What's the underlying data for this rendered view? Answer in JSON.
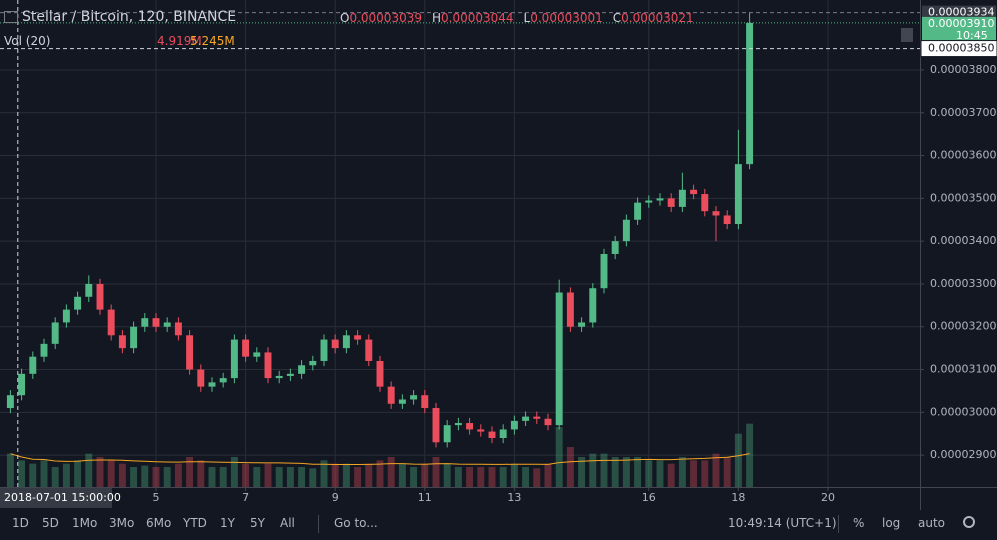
{
  "chart_data": {
    "type": "candlestick",
    "title": "Stellar / Bitcoin, 120, BINANCE",
    "ohlc": [
      {
        "name": "O",
        "value": 3.039e-05
      },
      {
        "name": "H",
        "value": 3.044e-05
      },
      {
        "name": "L",
        "value": 3.001e-05
      },
      {
        "name": "C",
        "value": 3.021e-05
      }
    ],
    "up_color": "#53b987",
    "down_color": "#eb4d5c",
    "x": [
      1.75,
      2,
      2.25,
      2.5,
      2.75,
      3,
      3.25,
      3.5,
      3.75,
      4,
      4.25,
      4.5,
      4.75,
      5,
      5.25,
      5.5,
      5.75,
      6,
      6.25,
      6.5,
      6.75,
      7,
      7.25,
      7.5,
      7.75,
      8,
      8.25,
      8.5,
      8.75,
      9,
      9.25,
      9.5,
      9.75,
      10,
      10.25,
      10.5,
      10.75,
      11,
      11.25,
      11.5,
      11.75,
      12,
      12.25,
      12.5,
      12.75,
      13,
      13.25,
      13.5,
      13.75,
      14,
      14.25,
      14.5,
      14.75,
      15,
      15.25,
      15.5,
      15.75,
      16,
      16.25,
      16.5,
      16.75,
      17,
      17.25,
      17.5,
      17.75,
      18,
      18.25
    ],
    "open": [
      3.01e-05,
      3.04e-05,
      3.09e-05,
      3.13e-05,
      3.16e-05,
      3.21e-05,
      3.24e-05,
      3.27e-05,
      3.3e-05,
      3.24e-05,
      3.18e-05,
      3.15e-05,
      3.2e-05,
      3.22e-05,
      3.2e-05,
      3.21e-05,
      3.18e-05,
      3.1e-05,
      3.06e-05,
      3.07e-05,
      3.08e-05,
      3.17e-05,
      3.13e-05,
      3.14e-05,
      3.08e-05,
      3.085e-05,
      3.09e-05,
      3.11e-05,
      3.12e-05,
      3.17e-05,
      3.15e-05,
      3.18e-05,
      3.17e-05,
      3.12e-05,
      3.06e-05,
      3.02e-05,
      3.03e-05,
      3.04e-05,
      3.01e-05,
      2.93e-05,
      2.97e-05,
      2.975e-05,
      2.96e-05,
      2.955e-05,
      2.94e-05,
      2.96e-05,
      2.98e-05,
      2.99e-05,
      2.985e-05,
      2.97e-05,
      3.28e-05,
      3.2e-05,
      3.21e-05,
      3.29e-05,
      3.37e-05,
      3.4e-05,
      3.45e-05,
      3.49e-05,
      3.495e-05,
      3.5e-05,
      3.48e-05,
      3.52e-05,
      3.51e-05,
      3.47e-05,
      3.46e-05,
      3.44e-05,
      3.58e-05
    ],
    "high": [
      3.052e-05,
      3.102e-05,
      3.142e-05,
      3.172e-05,
      3.222e-05,
      3.252e-05,
      3.282e-05,
      3.32e-05,
      3.312e-05,
      3.252e-05,
      3.192e-05,
      3.212e-05,
      3.232e-05,
      3.232e-05,
      3.222e-05,
      3.222e-05,
      3.192e-05,
      3.112e-05,
      3.082e-05,
      3.092e-05,
      3.182e-05,
      3.182e-05,
      3.152e-05,
      3.152e-05,
      3.097e-05,
      3.102e-05,
      3.122e-05,
      3.132e-05,
      3.182e-05,
      3.182e-05,
      3.192e-05,
      3.192e-05,
      3.182e-05,
      3.132e-05,
      3.072e-05,
      3.042e-05,
      3.052e-05,
      3.052e-05,
      3.022e-05,
      2.982e-05,
      2.987e-05,
      2.987e-05,
      2.972e-05,
      2.967e-05,
      2.972e-05,
      2.992e-05,
      3.002e-05,
      3.002e-05,
      2.997e-05,
      3.31e-05,
      3.292e-05,
      3.222e-05,
      3.302e-05,
      3.382e-05,
      3.412e-05,
      3.462e-05,
      3.502e-05,
      3.507e-05,
      3.512e-05,
      3.512e-05,
      3.56e-05,
      3.532e-05,
      3.522e-05,
      3.482e-05,
      3.472e-05,
      3.66e-05,
      3.934e-05
    ],
    "low": [
      2.998e-05,
      3.028e-05,
      3.078e-05,
      3.118e-05,
      3.148e-05,
      3.198e-05,
      3.228e-05,
      3.258e-05,
      3.228e-05,
      3.168e-05,
      3.138e-05,
      3.138e-05,
      3.188e-05,
      3.188e-05,
      3.188e-05,
      3.168e-05,
      3.088e-05,
      3.048e-05,
      3.048e-05,
      3.058e-05,
      3.068e-05,
      3.118e-05,
      3.118e-05,
      3.068e-05,
      3.068e-05,
      3.073e-05,
      3.078e-05,
      3.098e-05,
      3.108e-05,
      3.138e-05,
      3.138e-05,
      3.158e-05,
      3.108e-05,
      3.048e-05,
      3.008e-05,
      3.008e-05,
      3.018e-05,
      2.998e-05,
      2.918e-05,
      2.918e-05,
      2.958e-05,
      2.948e-05,
      2.943e-05,
      2.928e-05,
      2.928e-05,
      2.948e-05,
      2.968e-05,
      2.973e-05,
      2.958e-05,
      2.96e-05,
      3.188e-05,
      3.188e-05,
      3.198e-05,
      3.278e-05,
      3.358e-05,
      3.388e-05,
      3.438e-05,
      3.478e-05,
      3.483e-05,
      3.468e-05,
      3.468e-05,
      3.498e-05,
      3.458e-05,
      3.4e-05,
      3.428e-05,
      3.428e-05,
      3.568e-05
    ],
    "close": [
      3.04e-05,
      3.09e-05,
      3.13e-05,
      3.16e-05,
      3.21e-05,
      3.24e-05,
      3.27e-05,
      3.3e-05,
      3.24e-05,
      3.18e-05,
      3.15e-05,
      3.2e-05,
      3.22e-05,
      3.2e-05,
      3.21e-05,
      3.18e-05,
      3.1e-05,
      3.06e-05,
      3.07e-05,
      3.08e-05,
      3.17e-05,
      3.13e-05,
      3.14e-05,
      3.08e-05,
      3.085e-05,
      3.09e-05,
      3.11e-05,
      3.12e-05,
      3.17e-05,
      3.15e-05,
      3.18e-05,
      3.17e-05,
      3.12e-05,
      3.06e-05,
      3.02e-05,
      3.03e-05,
      3.04e-05,
      3.01e-05,
      2.93e-05,
      2.97e-05,
      2.975e-05,
      2.96e-05,
      2.955e-05,
      2.94e-05,
      2.96e-05,
      2.98e-05,
      2.99e-05,
      2.985e-05,
      2.97e-05,
      3.28e-05,
      3.2e-05,
      3.21e-05,
      3.29e-05,
      3.37e-05,
      3.4e-05,
      3.45e-05,
      3.49e-05,
      3.495e-05,
      3.5e-05,
      3.48e-05,
      3.52e-05,
      3.51e-05,
      3.47e-05,
      3.46e-05,
      3.44e-05,
      3.58e-05,
      3.91e-05
    ],
    "volume": {
      "name": "Vol (20)",
      "value_label": "4.919M",
      "ma_label": "5.245M",
      "ma_color": "#f5a623",
      "axis": "y2",
      "values": [
        5,
        4,
        3.5,
        4,
        3,
        3.5,
        4,
        5,
        4.5,
        4,
        3.5,
        3,
        3.2,
        3,
        3,
        3.5,
        4.5,
        4,
        3,
        3,
        4.5,
        3.5,
        3,
        3.5,
        3,
        3,
        3,
        2.8,
        4,
        3.5,
        3.5,
        3,
        3.5,
        4,
        4.5,
        3.5,
        3,
        3.5,
        4.5,
        3.5,
        3,
        3,
        3,
        3,
        3,
        3.5,
        3,
        2.8,
        3.5,
        9,
        6,
        4.5,
        5,
        5,
        4.5,
        4.5,
        4.5,
        4,
        4,
        3.5,
        4.5,
        4,
        4,
        5,
        4.5,
        8,
        9.5
      ]
    },
    "xlim": [
      1.518,
      22.054
    ],
    "xticks": [
      5,
      7,
      9,
      11,
      13,
      16,
      18,
      20
    ],
    "ylim": [
      2.8255e-05,
      3.9635e-05
    ],
    "yticks": [
      {
        "value": 2.9e-05,
        "label": "0.00002900"
      },
      {
        "value": 3e-05,
        "label": "0.00003000"
      },
      {
        "value": 3.1e-05,
        "label": "0.00003100"
      },
      {
        "value": 3.2e-05,
        "label": "0.00003200"
      },
      {
        "value": 3.3e-05,
        "label": "0.00003300"
      },
      {
        "value": 3.4e-05,
        "label": "0.00003400"
      },
      {
        "value": 3.5e-05,
        "label": "0.00003500"
      },
      {
        "value": 3.6e-05,
        "label": "0.00003600"
      },
      {
        "value": 3.7e-05,
        "label": "0.00003700"
      },
      {
        "value": 3.8e-05,
        "label": "0.00003800"
      }
    ],
    "y2lim": [
      0,
      15
    ],
    "grid": true,
    "high_marker": {
      "value": 3.934e-05,
      "label": "0.00003934"
    },
    "last_price": {
      "value": 3.91e-05,
      "label": "0.00003910",
      "countdown": "10:45"
    },
    "crosshair_price": {
      "value": 3.85e-05,
      "label": "0.00003850"
    },
    "crosshair_time": {
      "value": 1.625,
      "label": "2018-07-01 15:00:00"
    }
  },
  "toolbar": {
    "ranges": [
      "1D",
      "5D",
      "1Mo",
      "3Mo",
      "6Mo",
      "YTD",
      "1Y",
      "5Y",
      "All"
    ],
    "goto": "Go to...",
    "clock": "10:49:14 (UTC+1)",
    "options": [
      "%",
      "log",
      "auto"
    ]
  }
}
